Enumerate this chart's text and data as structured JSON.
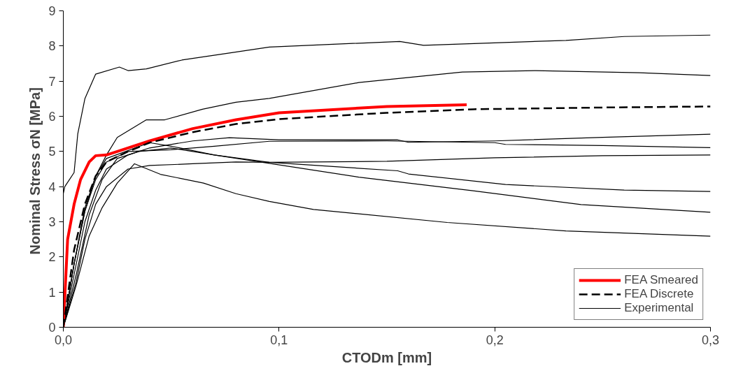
{
  "chart_data": {
    "type": "line",
    "xlabel": "CTODm [mm]",
    "ylabel": "Nominal Stress  σN [MPa]",
    "xlim": [
      0,
      0.3
    ],
    "ylim": [
      0,
      9
    ],
    "xticks": [
      {
        "value": 0,
        "label": "0,0"
      },
      {
        "value": 0.1,
        "label": "0,1"
      },
      {
        "value": 0.2,
        "label": "0,2"
      },
      {
        "value": 0.3,
        "label": "0,3"
      }
    ],
    "yticks": [
      0,
      1,
      2,
      3,
      4,
      5,
      6,
      7,
      8,
      9
    ],
    "grid": false,
    "legend": "bottom right",
    "series": [
      {
        "name": "FEA Smeared",
        "color": "#ff0000",
        "line_style": "solid",
        "x": [
          0,
          0.002,
          0.005,
          0.008,
          0.012,
          0.015,
          0.02,
          0.025,
          0.04,
          0.06,
          0.08,
          0.1,
          0.15,
          0.187
        ],
        "values": [
          0,
          2.5,
          3.5,
          4.2,
          4.7,
          4.88,
          4.9,
          5.0,
          5.3,
          5.65,
          5.9,
          6.1,
          6.28,
          6.33
        ]
      },
      {
        "name": "FEA Discrete",
        "color": "#000000",
        "line_style": "dashed",
        "x": [
          0,
          0.005,
          0.01,
          0.015,
          0.02,
          0.03,
          0.04,
          0.06,
          0.08,
          0.1,
          0.15,
          0.19,
          0.25,
          0.3
        ],
        "values": [
          0,
          2.2,
          3.5,
          4.3,
          4.7,
          5.0,
          5.25,
          5.55,
          5.78,
          5.92,
          6.1,
          6.2,
          6.25,
          6.28
        ]
      },
      {
        "name": "Experimental",
        "color": "#000000",
        "line_style": "solid",
        "x": [
          0,
          0,
          0.0007,
          0.005,
          0.0067,
          0.01,
          0.015,
          0.026,
          0.03,
          0.0385,
          0.055,
          0.077,
          0.0955,
          0.156,
          0.167,
          0.233,
          0.26,
          0.3
        ],
        "values": [
          0,
          3.8,
          4.0,
          4.4,
          5.5,
          6.5,
          7.2,
          7.4,
          7.3,
          7.35,
          7.6,
          7.8,
          7.97,
          8.13,
          8.02,
          8.16,
          8.27,
          8.31
        ]
      },
      {
        "color": "#000000",
        "line_style": "solid",
        "x": [
          0,
          0.005,
          0.01,
          0.015,
          0.02,
          0.025,
          0.0385,
          0.047,
          0.0645,
          0.08,
          0.0955,
          0.137,
          0.185,
          0.219,
          0.267,
          0.3
        ],
        "values": [
          0,
          1.8,
          3.3,
          4.3,
          4.9,
          5.4,
          5.9,
          5.9,
          6.2,
          6.4,
          6.51,
          6.96,
          7.26,
          7.3,
          7.24,
          7.16
        ]
      },
      {
        "color": "#000000",
        "line_style": "solid",
        "x": [
          0,
          0.005,
          0.01,
          0.015,
          0.02,
          0.03,
          0.04,
          0.06,
          0.077,
          0.1,
          0.155,
          0.16,
          0.2,
          0.25,
          0.3
        ],
        "values": [
          0,
          1.5,
          3.0,
          3.9,
          4.5,
          4.9,
          5.1,
          5.3,
          5.39,
          5.33,
          5.33,
          5.26,
          5.3,
          5.4,
          5.49
        ]
      },
      {
        "color": "#000000",
        "line_style": "solid",
        "x": [
          0,
          0.005,
          0.01,
          0.015,
          0.02,
          0.03,
          0.05,
          0.07,
          0.0955,
          0.15,
          0.2,
          0.205,
          0.25,
          0.3
        ],
        "values": [
          0,
          1.8,
          3.3,
          4.2,
          4.7,
          5.0,
          5.05,
          5.15,
          5.29,
          5.3,
          5.25,
          5.2,
          5.17,
          5.11
        ]
      },
      {
        "color": "#000000",
        "line_style": "solid",
        "x": [
          0,
          0.006,
          0.01,
          0.015,
          0.02,
          0.03,
          0.04,
          0.06,
          0.08,
          0.0955,
          0.15,
          0.2,
          0.25,
          0.3
        ],
        "values": [
          0,
          1.3,
          2.5,
          3.5,
          4.0,
          4.5,
          4.6,
          4.65,
          4.7,
          4.69,
          4.72,
          4.82,
          4.88,
          4.9
        ]
      },
      {
        "color": "#000000",
        "line_style": "solid",
        "x": [
          0,
          0.005,
          0.01,
          0.015,
          0.02,
          0.04,
          0.05,
          0.07,
          0.0955,
          0.155,
          0.16,
          0.205,
          0.26,
          0.3
        ],
        "values": [
          0,
          1.8,
          3.4,
          4.3,
          4.8,
          5.25,
          5.15,
          4.9,
          4.69,
          4.45,
          4.36,
          4.06,
          3.9,
          3.86
        ]
      },
      {
        "color": "#000000",
        "line_style": "solid",
        "x": [
          0,
          0.006,
          0.012,
          0.018,
          0.025,
          0.035,
          0.05,
          0.07,
          0.0955,
          0.137,
          0.19,
          0.24,
          0.3
        ],
        "values": [
          0,
          1.5,
          3.2,
          4.2,
          4.8,
          5.0,
          5.1,
          4.9,
          4.66,
          4.27,
          3.88,
          3.49,
          3.27
        ]
      },
      {
        "color": "#000000",
        "line_style": "solid",
        "x": [
          0,
          0.006,
          0.012,
          0.018,
          0.025,
          0.033,
          0.045,
          0.065,
          0.08,
          0.0955,
          0.116,
          0.178,
          0.233,
          0.3
        ],
        "values": [
          0,
          1.2,
          2.6,
          3.4,
          4.1,
          4.65,
          4.35,
          4.1,
          3.8,
          3.58,
          3.35,
          2.98,
          2.74,
          2.59
        ]
      }
    ]
  }
}
